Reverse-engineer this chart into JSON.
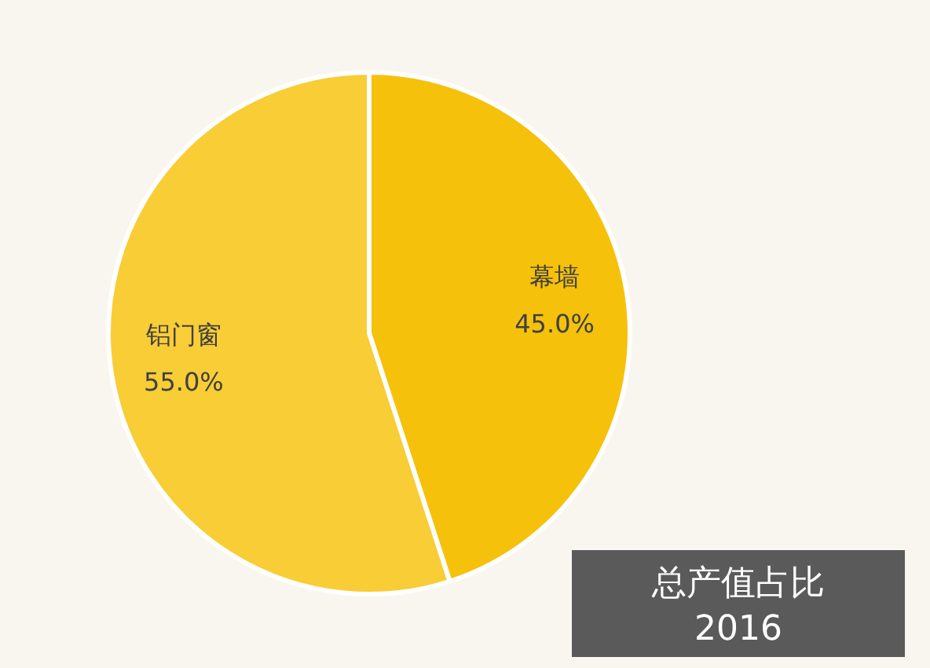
{
  "chart_data": {
    "type": "pie",
    "title": "总产值占比",
    "subtitle": "2016",
    "categories": [
      "幕墙",
      "铝门窗"
    ],
    "values": [
      45,
      55
    ],
    "colors": [
      "#f5c10a",
      "#f8cd35"
    ],
    "value_labels": [
      "45.0%",
      "55.0%"
    ]
  }
}
